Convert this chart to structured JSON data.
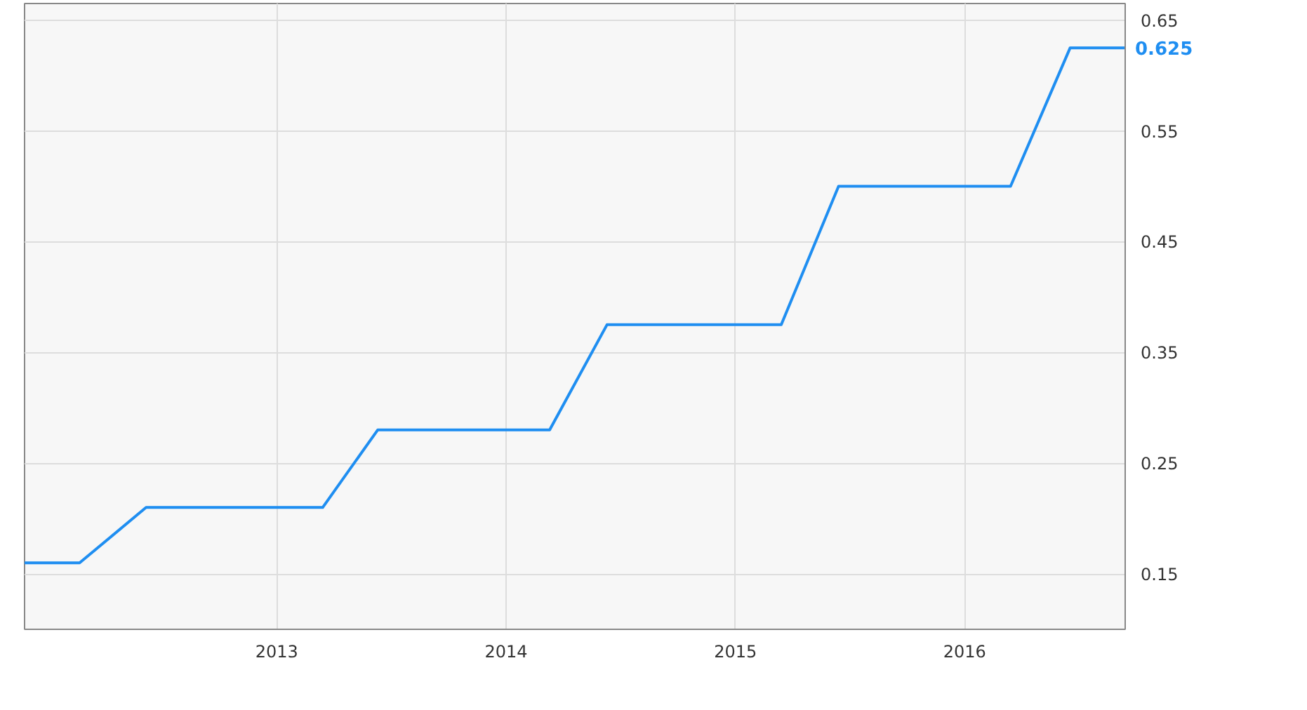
{
  "chart_data": {
    "type": "line",
    "x": [
      2011.9,
      2012.14,
      2012.43,
      2013.2,
      2013.44,
      2014.19,
      2014.44,
      2015.2,
      2015.45,
      2016.2,
      2016.46,
      2016.7
    ],
    "series": [
      {
        "color": "#1f8ef1",
        "values": [
          0.16,
          0.16,
          0.21,
          0.21,
          0.28,
          0.28,
          0.375,
          0.375,
          0.5,
          0.5,
          0.625,
          0.625
        ],
        "value_labels": [
          null,
          null,
          null,
          null,
          null,
          null,
          null,
          null,
          null,
          null,
          null,
          "0.625"
        ]
      }
    ],
    "xlim": [
      2011.9,
      2016.7
    ],
    "xticks": [
      2013,
      2014,
      2015,
      2016
    ],
    "ylim": [
      0.1,
      0.665
    ],
    "yticks": [
      0.15,
      0.25,
      0.35,
      0.45,
      0.55,
      0.65
    ],
    "grid": true,
    "line_style": "solid",
    "marker": "none"
  }
}
